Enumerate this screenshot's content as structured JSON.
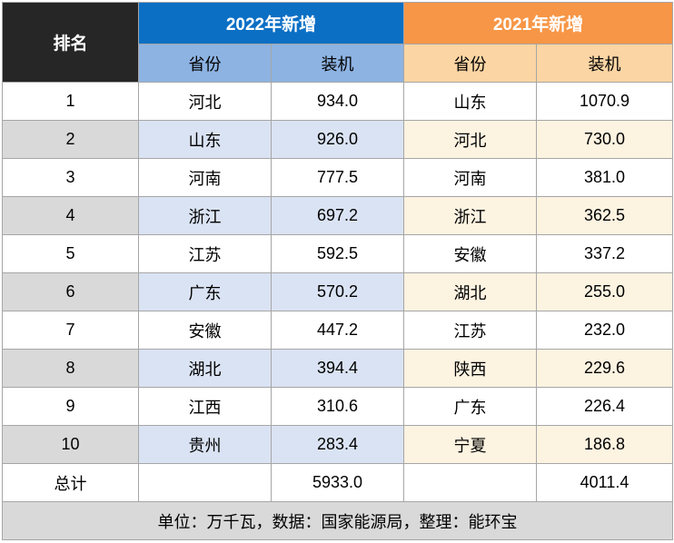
{
  "header": {
    "rank": "排名",
    "groups": [
      {
        "title": "2022年新增",
        "columns": [
          "省份",
          "装机"
        ]
      },
      {
        "title": "2021年新增",
        "columns": [
          "省份",
          "装机"
        ]
      }
    ]
  },
  "table": {
    "rows": [
      [
        "1",
        "河北",
        "934.0",
        "山东",
        "1070.9"
      ],
      [
        "2",
        "山东",
        "926.0",
        "河北",
        "730.0"
      ],
      [
        "3",
        "河南",
        "777.5",
        "河南",
        "381.0"
      ],
      [
        "4",
        "浙江",
        "697.2",
        "浙江",
        "362.5"
      ],
      [
        "5",
        "江苏",
        "592.5",
        "安徽",
        "337.2"
      ],
      [
        "6",
        "广东",
        "570.2",
        "湖北",
        "255.0"
      ],
      [
        "7",
        "安徽",
        "447.2",
        "江苏",
        "232.0"
      ],
      [
        "8",
        "湖北",
        "394.4",
        "陕西",
        "229.6"
      ],
      [
        "9",
        "江西",
        "310.6",
        "广东",
        "226.4"
      ],
      [
        "10",
        "贵州",
        "283.4",
        "宁夏",
        "186.8"
      ]
    ]
  },
  "total": {
    "label": "总计",
    "values": [
      "5933.0",
      "4011.4"
    ]
  },
  "footer": "单位：万千瓦，数据：国家能源局，整理：能环宝"
}
